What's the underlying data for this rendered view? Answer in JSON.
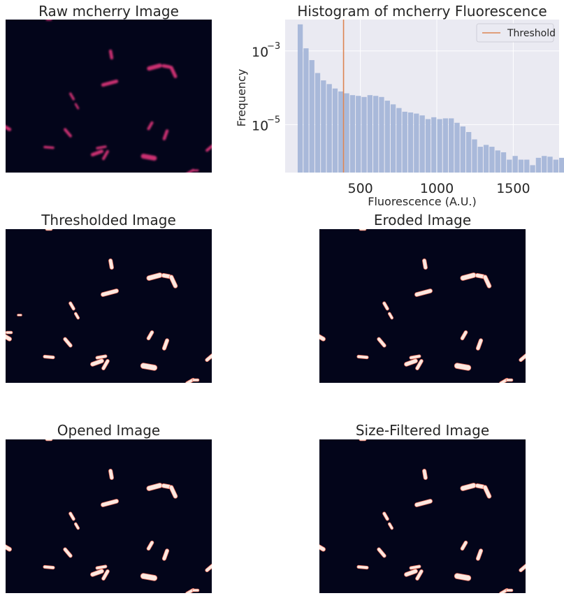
{
  "panels": {
    "raw": {
      "title": "Raw mcherry Image"
    },
    "thresholded": {
      "title": "Thresholded Image"
    },
    "eroded": {
      "title": "Eroded Image"
    },
    "opened": {
      "title": "Opened Image"
    },
    "size_filtered": {
      "title": "Size-Filtered Image"
    }
  },
  "colors": {
    "image_background": "#03051a",
    "raw_cell": "#e0357a",
    "mask_cell": "#fbe9e1",
    "mask_edge": "#f47a66",
    "hist_background": "#eaeaf2",
    "bar": "#a9b9da",
    "threshold_line": "#dd8452",
    "grid": "#ffffff"
  },
  "chart_data": {
    "type": "bar",
    "title": "Histogram of mcherry Fluorescence",
    "xlabel": "Fluorescence (A.U.)",
    "ylabel": "Frequency",
    "xlim": [
      8,
      1800
    ],
    "ylim_log10": [
      -6.3,
      -2.15
    ],
    "y_scale": "log",
    "grid": true,
    "legend": {
      "position": "top-right",
      "entries": [
        "Threshold"
      ]
    },
    "x_ticks": [
      {
        "value": 500,
        "label": "500"
      },
      {
        "value": 1000,
        "label": "1000"
      },
      {
        "value": 1500,
        "label": "1500"
      }
    ],
    "y_ticks": [
      {
        "log10": -3,
        "base": "10",
        "exp": "−3"
      },
      {
        "log10": -5,
        "base": "10",
        "exp": "−5"
      }
    ],
    "threshold": 390,
    "bin_start": 90,
    "bin_width": 38,
    "log10_frequencies": [
      -2.28,
      -2.93,
      -3.25,
      -3.6,
      -3.8,
      -3.9,
      -4.02,
      -4.1,
      -4.15,
      -4.2,
      -4.22,
      -4.25,
      -4.2,
      -4.22,
      -4.25,
      -4.35,
      -4.45,
      -4.55,
      -4.65,
      -4.67,
      -4.7,
      -4.75,
      -4.85,
      -4.8,
      -4.85,
      -4.83,
      -4.83,
      -4.95,
      -5.05,
      -5.2,
      -5.4,
      -5.6,
      -5.55,
      -5.6,
      -5.7,
      -5.75,
      -5.95,
      -5.85,
      -5.95,
      -5.95,
      -6.1,
      -5.9,
      -5.85,
      -5.87,
      -5.95,
      -5.9,
      -5.85,
      -5.7
    ]
  }
}
